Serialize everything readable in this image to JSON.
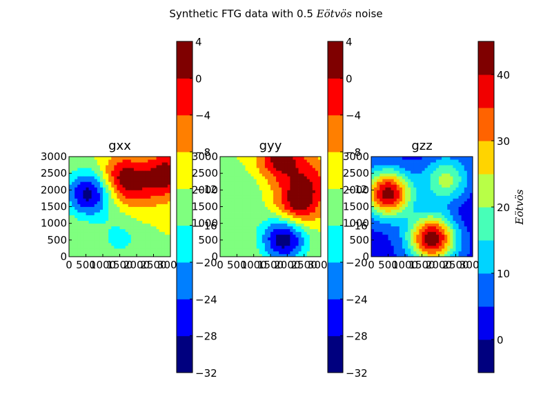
{
  "suptitle": {
    "prefix": "Synthetic FTG data with 0.5 ",
    "unit": "Eötvös",
    "suffix": " noise"
  },
  "chart_data": [
    {
      "type": "heatmap",
      "title": "gxx",
      "xlim": [
        0,
        3000
      ],
      "ylim": [
        0,
        3000
      ],
      "x_ticks": [
        "0",
        "500",
        "1000",
        "1500",
        "2000",
        "2500",
        "3000"
      ],
      "y_ticks": [
        "0",
        "500",
        "1000",
        "1500",
        "2000",
        "2500",
        "3000"
      ],
      "contour_levels": [
        -32,
        -28,
        -24,
        -20,
        -16,
        -12,
        -8,
        -4,
        0,
        4
      ],
      "colorbar_ticks": [
        "4",
        "0",
        "−4",
        "−8",
        "−12",
        "−16",
        "−20",
        "−24",
        "−28",
        "−32"
      ],
      "colorbar_label": "",
      "features": [
        {
          "x": 600,
          "y": 1900,
          "value": -30
        },
        {
          "x": 1600,
          "y": 2350,
          "value": 2
        },
        {
          "x": 2900,
          "y": 2500,
          "value": 2
        },
        {
          "x": 2200,
          "y": 1900,
          "value": -8
        },
        {
          "x": 1500,
          "y": 550,
          "value": -17
        }
      ]
    },
    {
      "type": "heatmap",
      "title": "gyy",
      "xlim": [
        0,
        3000
      ],
      "ylim": [
        0,
        3000
      ],
      "x_ticks": [
        "0",
        "500",
        "1000",
        "1500",
        "2000",
        "2500",
        "3000"
      ],
      "y_ticks": [
        "0",
        "500",
        "1000",
        "1500",
        "2000",
        "2500",
        "3000"
      ],
      "contour_levels": [
        -32,
        -28,
        -24,
        -20,
        -16,
        -12,
        -8,
        -4,
        0,
        4
      ],
      "colorbar_ticks": [
        "4",
        "0",
        "−4",
        "−8",
        "−12",
        "−16",
        "−20",
        "−24",
        "−28",
        "−32"
      ],
      "colorbar_label": "",
      "features": [
        {
          "x": 1900,
          "y": 550,
          "value": -31
        },
        {
          "x": 2300,
          "y": 1550,
          "value": 2
        },
        {
          "x": 1800,
          "y": 2950,
          "value": 2
        },
        {
          "x": 600,
          "y": 1900,
          "value": -16
        },
        {
          "x": 2700,
          "y": 2300,
          "value": -4
        }
      ]
    },
    {
      "type": "heatmap",
      "title": "gzz",
      "xlim": [
        0,
        3000
      ],
      "ylim": [
        0,
        3000
      ],
      "x_ticks": [
        "0",
        "500",
        "1000",
        "1500",
        "2000",
        "2500",
        "3000"
      ],
      "y_ticks": [
        "0",
        "500",
        "1000",
        "1500",
        "2000",
        "2500",
        "3000"
      ],
      "contour_levels": [
        -5,
        0,
        5,
        10,
        15,
        20,
        25,
        30,
        35,
        40,
        45
      ],
      "colorbar_ticks": [
        "40",
        "30",
        "20",
        "10",
        "0"
      ],
      "colorbar_label": "Eötvös",
      "features": [
        {
          "x": 500,
          "y": 1900,
          "value": 43
        },
        {
          "x": 1800,
          "y": 550,
          "value": 44
        },
        {
          "x": 2200,
          "y": 2300,
          "value": 22
        },
        {
          "x": 2900,
          "y": 1400,
          "value": 0
        },
        {
          "x": 1400,
          "y": 2600,
          "value": 2
        }
      ]
    }
  ],
  "colors": {
    "colormap": "jet",
    "stops": [
      "#00007f",
      "#0000ff",
      "#007fff",
      "#00ffff",
      "#7fff7f",
      "#ffff00",
      "#ff7f00",
      "#ff0000",
      "#7f0000"
    ]
  }
}
